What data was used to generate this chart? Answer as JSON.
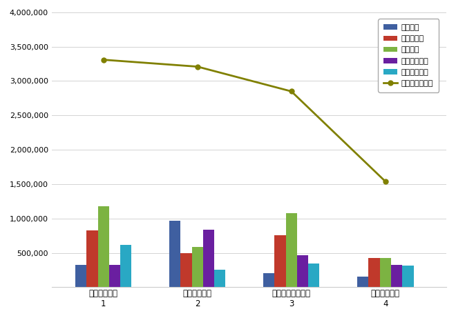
{
  "x_labels_top": [
    "신용보증기금",
    "서울보증보험",
    "주택도시보증공사",
    "기술보증기금"
  ],
  "x_labels_bottom": [
    "1",
    "2",
    "3",
    "4"
  ],
  "bar_series": {
    "참여지수": [
      320000,
      970000,
      200000,
      150000
    ],
    "미디어지수": [
      830000,
      500000,
      760000,
      420000
    ],
    "소통지수": [
      1180000,
      590000,
      1080000,
      430000
    ],
    "커뮤니티지수": [
      320000,
      840000,
      470000,
      320000
    ],
    "사회공헌지수": [
      620000,
      255000,
      340000,
      310000
    ]
  },
  "line_series": {
    "브랜드평판지수": [
      3310000,
      3210000,
      2850000,
      1540000
    ]
  },
  "bar_colors": {
    "참여지수": "#3f5fa0",
    "미디어지수": "#c0392b",
    "소통지수": "#7cb342",
    "커뮤니티지수": "#6a1fa0",
    "사회공헌지수": "#29a8c4"
  },
  "line_color": "#808000",
  "ylim": [
    0,
    4000000
  ],
  "yticks": [
    0,
    500000,
    1000000,
    1500000,
    2000000,
    2500000,
    3000000,
    3500000,
    4000000
  ],
  "legend_order": [
    "참여지수",
    "미디어지수",
    "소통지수",
    "커뮤니티지수",
    "사회공헌지수",
    "브랜드평판지수"
  ],
  "background_color": "#ffffff",
  "grid_color": "#d3d3d3",
  "figsize": [
    6.6,
    4.61
  ],
  "dpi": 100
}
